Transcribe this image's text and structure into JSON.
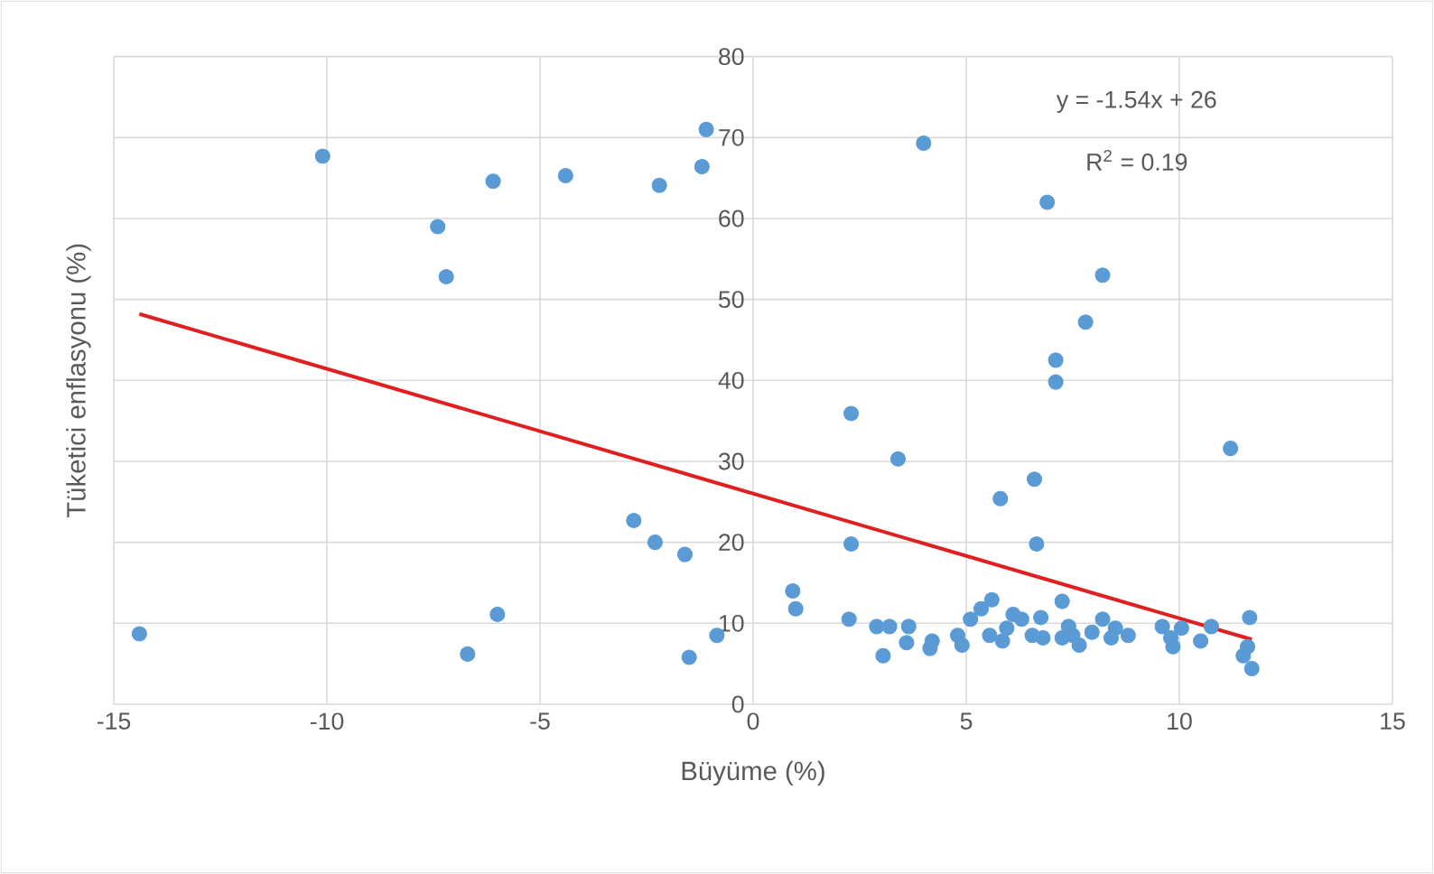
{
  "chart_data": {
    "type": "scatter",
    "xlabel": "Büyüme (%)",
    "ylabel": "Tüketici enflasyonu (%)",
    "xlim": [
      -15,
      15
    ],
    "xticks": [
      -15,
      -10,
      -5,
      0,
      5,
      10,
      15
    ],
    "ylim": [
      0,
      80
    ],
    "yticks": [
      0,
      10,
      20,
      30,
      40,
      50,
      60,
      70,
      80
    ],
    "grid": true,
    "annotations": [
      "y = -1.54x + 26",
      "R$^{2}$ = 0.19"
    ],
    "series": [
      {
        "marker": "circle",
        "color": "#5b9bd5",
        "x": [
          -14.4,
          -10.1,
          -7.4,
          -7.2,
          -6.1,
          -4.4,
          -2.2,
          -1.1,
          -1.2,
          -6.7,
          -6.0,
          -2.8,
          -2.3,
          -1.6,
          -1.5,
          -0.85,
          4.0,
          6.9,
          8.2,
          7.8,
          7.1,
          7.1,
          2.3,
          3.4,
          5.8,
          6.6,
          6.65,
          2.3,
          11.2,
          0.93,
          1.0,
          2.25,
          2.9,
          3.05,
          3.2,
          3.65,
          3.6,
          4.2,
          4.15,
          4.8,
          4.9,
          5.1,
          5.35,
          5.6,
          5.55,
          5.85,
          5.95,
          6.1,
          6.3,
          6.75,
          6.8,
          7.25,
          7.4,
          7.5,
          7.25,
          7.95,
          8.2,
          8.4,
          8.5,
          8.8,
          9.6,
          9.8,
          9.85,
          10.05,
          10.5,
          10.75,
          11.65,
          11.5,
          11.6,
          11.7,
          6.55,
          7.65
        ],
        "values": [
          8.7,
          67.7,
          59,
          52.8,
          64.6,
          65.3,
          64.1,
          71,
          66.4,
          6.2,
          11.1,
          22.7,
          20,
          18.5,
          5.8,
          8.5,
          69.3,
          62,
          53,
          47.2,
          42.5,
          39.8,
          35.9,
          30.3,
          25.4,
          27.8,
          19.8,
          19.8,
          31.6,
          14,
          11.8,
          10.5,
          9.6,
          6.0,
          9.6,
          9.6,
          7.6,
          7.8,
          6.9,
          8.5,
          7.3,
          10.5,
          11.8,
          12.9,
          8.5,
          7.8,
          9.4,
          11.1,
          10.5,
          10.7,
          8.2,
          12.7,
          9.6,
          8.5,
          8.2,
          8.9,
          10.5,
          8.2,
          9.4,
          8.5,
          9.6,
          8.2,
          7.1,
          9.4,
          7.8,
          9.6,
          10.7,
          6.0,
          7.1,
          4.4,
          8.5,
          7.3
        ]
      },
      {
        "type": "line",
        "marker": "none",
        "color": "#e02020",
        "x": [
          -14.4,
          11.7
        ],
        "values": [
          48.2,
          8.0
        ]
      }
    ]
  }
}
